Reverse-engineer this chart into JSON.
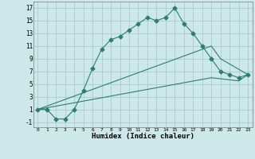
{
  "xlabel": "Humidex (Indice chaleur)",
  "bg_color": "#cde8e8",
  "grid_color": "#aacccc",
  "line_color": "#2e7d6e",
  "xlim": [
    -0.5,
    23.5
  ],
  "ylim": [
    -1.8,
    18.0
  ],
  "xticks": [
    0,
    1,
    2,
    3,
    4,
    5,
    6,
    7,
    8,
    9,
    10,
    11,
    12,
    13,
    14,
    15,
    16,
    17,
    18,
    19,
    20,
    21,
    22,
    23
  ],
  "yticks": [
    -1,
    1,
    3,
    5,
    7,
    9,
    11,
    13,
    15,
    17
  ],
  "line1_x": [
    0,
    1,
    2,
    3,
    4,
    5,
    6,
    7,
    8,
    9,
    10,
    11,
    12,
    13,
    14,
    15,
    16,
    17,
    18,
    19,
    20,
    21,
    22,
    23
  ],
  "line1_y": [
    1,
    1,
    -0.5,
    -0.5,
    1,
    4,
    7.5,
    10.5,
    12,
    12.5,
    13.5,
    14.5,
    15.5,
    15,
    15.5,
    17,
    14.5,
    13,
    11,
    9,
    7,
    6.5,
    6,
    6.5
  ],
  "line2_x": [
    0,
    19,
    20,
    23
  ],
  "line2_y": [
    1,
    11,
    9,
    6.5
  ],
  "line3_x": [
    0,
    19,
    22,
    23
  ],
  "line3_y": [
    1,
    6,
    5.5,
    6.5
  ]
}
